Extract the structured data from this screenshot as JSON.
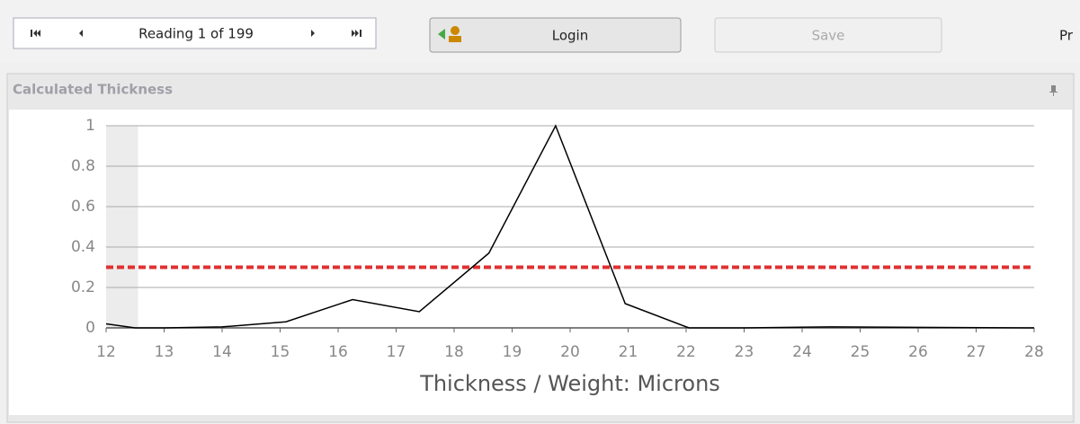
{
  "toolbar": {
    "navigator": "Reading 1 of 199",
    "login": "Login",
    "save": "Save",
    "cut_off": "Pr"
  },
  "panel": {
    "title": "Calculated Thickness"
  },
  "chart_data": {
    "type": "line",
    "x_label": "Thickness / Weight: Microns",
    "x": [
      12,
      12.5,
      13,
      14,
      15.1,
      16.25,
      17.4,
      18.6,
      19.75,
      20.95,
      22.05,
      23,
      24.5,
      28
    ],
    "series": [
      {
        "name": "Thickness",
        "color": "#000000",
        "values": [
          0.02,
          0,
          0,
          0.005,
          0.03,
          0.14,
          0.08,
          0.37,
          1,
          0.12,
          0,
          0,
          0.005,
          0
        ]
      }
    ],
    "xlim": [
      12,
      28
    ],
    "xticks": [
      12,
      13,
      14,
      15,
      16,
      17,
      18,
      19,
      20,
      21,
      22,
      23,
      24,
      25,
      26,
      27,
      28
    ],
    "ylim": [
      0,
      1
    ],
    "yticks": [
      0,
      0.2,
      0.4,
      0.6,
      0.8,
      1
    ],
    "grid": true,
    "threshold": {
      "value": 0.3,
      "color": "#e03030"
    },
    "highlight_x": [
      12,
      12.55
    ]
  }
}
